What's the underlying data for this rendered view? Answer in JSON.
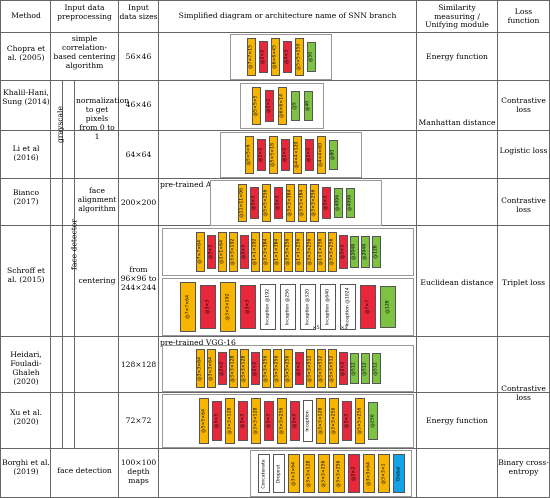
{
  "headers": {
    "method": "Method",
    "input_pre": "Input data preprocessing",
    "input_sizes": "Input data sizes",
    "diagram": "Simplified diagram or architecture name of SNN branch",
    "similarity": "Similarity measuring / Unifying module",
    "loss": "Loss function"
  },
  "preprocessing_labels": {
    "grayscale": "grayscale",
    "face_detector": "face detector",
    "simple_centering": "simple correlation-based centering algorithm",
    "normalization": "normalization to get pixels from 0 to 1",
    "face_alignment": "face alignment algorithm",
    "centering": "centering",
    "face_detection": "face detection"
  },
  "rows": [
    {
      "method": "Chopra et al. (2005)",
      "size": "56×46",
      "similarity": "Energy function",
      "loss": "Contrastive loss"
    },
    {
      "method": "Khalil-Hani, Sung (2014)",
      "size": "46×46",
      "similarity": "Manhattan distance",
      "loss": ""
    },
    {
      "method": "Li et al (2016)",
      "size": "64×64",
      "similarity": "",
      "loss": "Logistic loss"
    },
    {
      "method": "Bianco (2017)",
      "size": "200×200",
      "similarity": "",
      "loss": "Contrastive loss",
      "pretrained": "pre-trained AlexNet"
    },
    {
      "method": "Schroff et al. (2015)",
      "size": "from 96×96 to 244×244",
      "similarity": "Euclidean distance",
      "loss": "Triplet loss"
    },
    {
      "method": "Heidari, Fouladi-Ghaleh (2020)",
      "size": "128×128",
      "similarity": "",
      "loss": "Contrastive loss",
      "pretrained": "pre-trained VGG-16"
    },
    {
      "method": "Xu et al. (2020)",
      "size": "72×72",
      "similarity": "Energy function",
      "loss": ""
    },
    {
      "method": "Borghi et al. (2019)",
      "size": "100×100 depth maps",
      "similarity": "",
      "loss": "Binary cross-entropy"
    }
  ],
  "colors": {
    "conv": "#f7b500",
    "pool": "#e8283a",
    "fc": "#7dc242",
    "special": "#14a2e6"
  },
  "diagrams": {
    "chopra": [
      "@7×7×15",
      "@2×2",
      "@6×6×45",
      "@4×3",
      "@5×5×250",
      "@50"
    ],
    "khalil": [
      "@5×5×5",
      "@2×2",
      "@6×6×14",
      "@5",
      "@40"
    ],
    "li": [
      "@5×5×6",
      "@2×2",
      "@5×5×16",
      "@2×2",
      "@4×4×120",
      "@2×2",
      "@4×4×60",
      "@80"
    ],
    "bianco": [
      "@11×11×96",
      "@3×3",
      "@5×5×256",
      "@3×3",
      "@3×3×384",
      "@3×3×384",
      "@3×3×256",
      "@3×3",
      "@4096",
      "@4096"
    ],
    "schroff1": [
      "@7×7×64",
      "@3×3",
      "@1×1×64",
      "@3×3×192",
      "@3×3",
      "@1×1×192",
      "@3×3×384",
      "@1×1×384",
      "@3×3×256",
      "@1×1×256",
      "@3×3×256",
      "@1×1×256",
      "@3×3×256",
      "@3×3",
      "@2048",
      "@2048",
      "@128"
    ],
    "schroff2": [
      "@7×7×64",
      "@3×3",
      "@3×3×192",
      "@3×3",
      "Inception @192",
      "Inception @256",
      "Inception @320",
      "Inception @640",
      "Inception @1024",
      "@7×7",
      "@128"
    ],
    "schroff_mult": [
      "×5",
      "×3"
    ],
    "heidari": [
      "@3×3×64",
      "@3×3×64",
      "@2×2",
      "@3×3×128",
      "@3×3×128",
      "@2×2",
      "@3×3×256",
      "@3×3×256",
      "@3×3×256",
      "@2×2",
      "@3×3×512",
      "@3×3×512",
      "@3×3×512",
      "@2×2",
      "@512",
      "@512",
      "@512"
    ],
    "xu": [
      "@5×5×64",
      "@3×3",
      "@3×3×128",
      "@3×3",
      "@3×3×128",
      "@3×3",
      "@3×3×256",
      "@3×3",
      "Inception",
      "@3×3×128",
      "@3×3×256",
      "@3×3",
      "@5×5×256",
      "@256"
    ],
    "borghi_left": [
      "Concatenate",
      "Dropout"
    ],
    "borghi": [
      "@3×3×64",
      "@3×3×128",
      "@3×3×256",
      "@3×3×256",
      "@2×2",
      "@3×3×64",
      "@3×3×1",
      "Global"
    ]
  }
}
